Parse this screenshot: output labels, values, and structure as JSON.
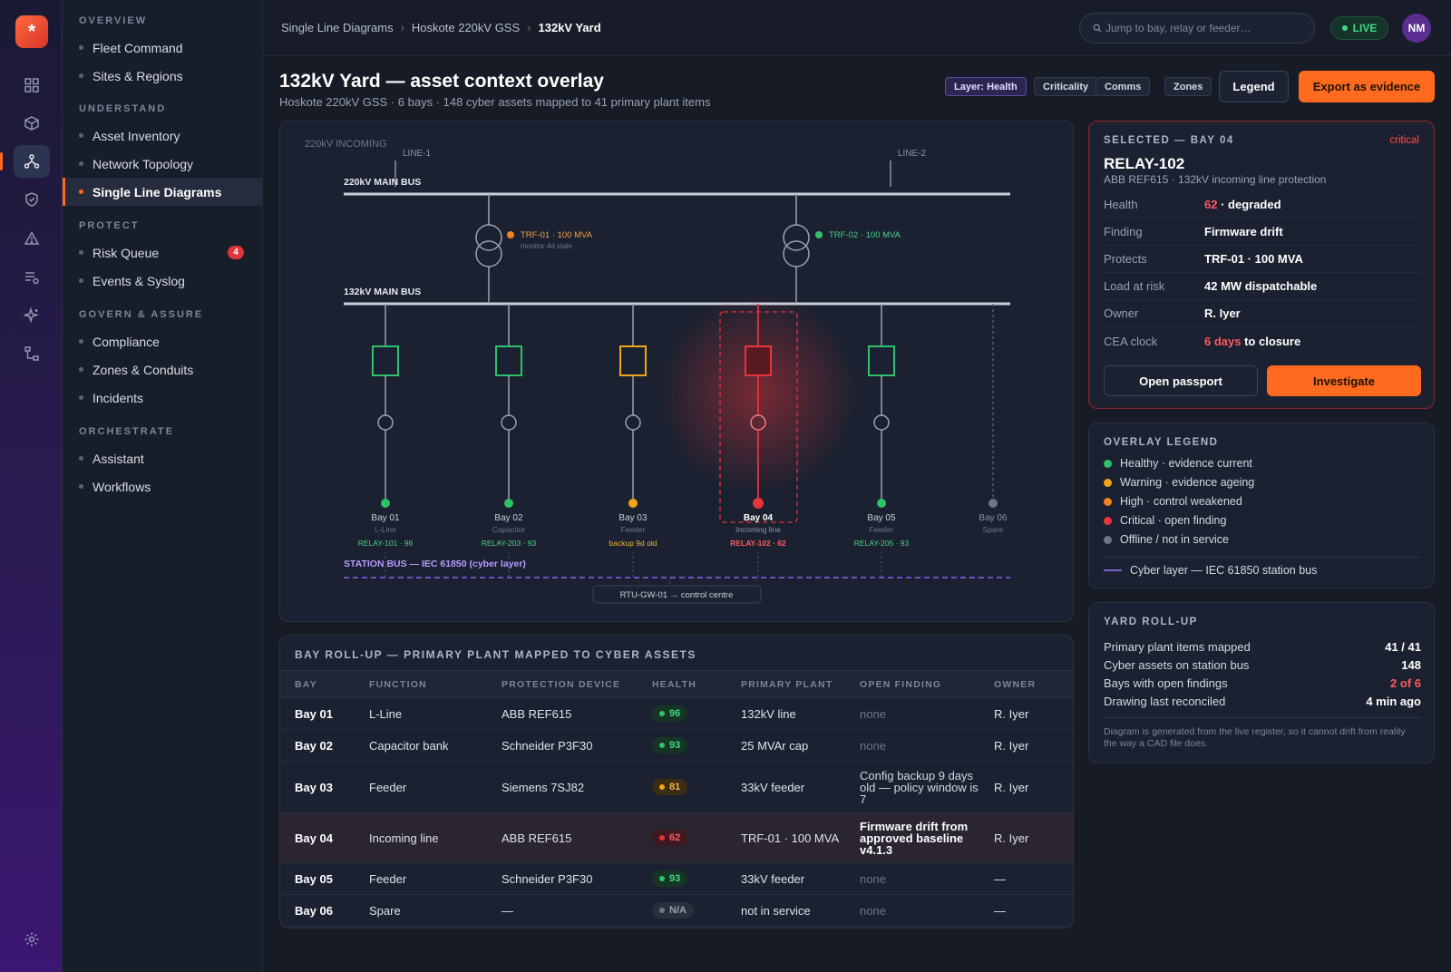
{
  "rail": {
    "logo_glyph": "*",
    "icons": [
      "grid-icon",
      "cube-icon",
      "topology-icon",
      "shield-icon",
      "warning-icon",
      "list-icon",
      "sparkle-icon",
      "workflow-icon"
    ],
    "settings_icon": "gear-icon"
  },
  "sidebar": {
    "sections": [
      {
        "title": "OVERVIEW",
        "items": [
          {
            "label": "Fleet Command"
          },
          {
            "label": "Sites & Regions"
          }
        ]
      },
      {
        "title": "UNDERSTAND",
        "items": [
          {
            "label": "Asset Inventory"
          },
          {
            "label": "Network Topology"
          },
          {
            "label": "Single Line Diagrams",
            "active": true
          }
        ]
      },
      {
        "title": "PROTECT",
        "items": [
          {
            "label": "Risk Queue",
            "badge": "4"
          },
          {
            "label": "Events & Syslog"
          }
        ]
      },
      {
        "title": "GOVERN & ASSURE",
        "items": [
          {
            "label": "Compliance"
          },
          {
            "label": "Zones & Conduits"
          },
          {
            "label": "Incidents"
          }
        ]
      },
      {
        "title": "ORCHESTRATE",
        "items": [
          {
            "label": "Assistant"
          },
          {
            "label": "Workflows"
          }
        ]
      }
    ]
  },
  "topbar": {
    "breadcrumb": [
      "Single Line Diagrams",
      "Hoskote 220kV GSS",
      "132kV Yard"
    ],
    "search_placeholder": "Jump to bay, relay or feeder…",
    "live_label": "LIVE",
    "avatar_initials": "NM"
  },
  "header": {
    "title": "132kV Yard — asset context overlay",
    "subtitle": "Hoskote 220kV GSS · 6 bays · 148 cyber assets mapped to 41 primary plant items",
    "chips": [
      "Layer: Health",
      "Criticality",
      "Comms",
      "Zones"
    ],
    "legend_button": "Legend",
    "export_button": "Export as evidence"
  },
  "diagram": {
    "incoming_label": "220kV INCOMING",
    "line1": "LINE-1",
    "line2": "LINE-2",
    "bus220": "220kV MAIN BUS",
    "bus132": "132kV MAIN BUS",
    "transformers": [
      {
        "label": "TRF-01 · 100 MVA",
        "note": "monitor 4d stale",
        "status": "high"
      },
      {
        "label": "TRF-02 · 100 MVA",
        "note": "",
        "status": "healthy"
      }
    ],
    "bays": [
      {
        "name": "Bay 01",
        "func": "L-Line",
        "relay": "RELAY-101 · 96",
        "status": "healthy"
      },
      {
        "name": "Bay 02",
        "func": "Capacitor",
        "relay": "RELAY-203 · 93",
        "status": "healthy"
      },
      {
        "name": "Bay 03",
        "func": "Feeder",
        "relay": "backup 9d old",
        "status": "warning"
      },
      {
        "name": "Bay 04",
        "func": "Incoming line",
        "relay": "RELAY-102 · 62",
        "status": "critical"
      },
      {
        "name": "Bay 05",
        "func": "Feeder",
        "relay": "RELAY-205 · 93",
        "status": "healthy"
      },
      {
        "name": "Bay 06",
        "func": "Spare",
        "relay": "",
        "status": "offline"
      }
    ],
    "station_bus": "STATION BUS — IEC 61850 (cyber layer)",
    "rtu": "RTU-GW-01 → control centre"
  },
  "table": {
    "title": "BAY ROLL-UP — PRIMARY PLANT MAPPED TO CYBER ASSETS",
    "columns": [
      "BAY",
      "FUNCTION",
      "PROTECTION DEVICE",
      "HEALTH",
      "PRIMARY PLANT",
      "OPEN FINDING",
      "OWNER"
    ],
    "rows": [
      {
        "bay": "Bay 01",
        "function": "L-Line",
        "device": "ABB REF615",
        "health": "96",
        "status": "healthy",
        "plant": "132kV line",
        "finding": "none",
        "owner": "R. Iyer"
      },
      {
        "bay": "Bay 02",
        "function": "Capacitor bank",
        "device": "Schneider P3F30",
        "health": "93",
        "status": "healthy",
        "plant": "25 MVAr cap",
        "finding": "none",
        "owner": "R. Iyer"
      },
      {
        "bay": "Bay 03",
        "function": "Feeder",
        "device": "Siemens 7SJ82",
        "health": "81",
        "status": "warning",
        "plant": "33kV feeder",
        "finding": "Config backup 9 days old — policy window is 7",
        "owner": "R. Iyer"
      },
      {
        "bay": "Bay 04",
        "function": "Incoming line",
        "device": "ABB REF615",
        "health": "62",
        "status": "critical",
        "plant": "TRF-01 · 100 MVA",
        "finding": "Firmware drift from approved baseline v4.1.3",
        "owner": "R. Iyer"
      },
      {
        "bay": "Bay 05",
        "function": "Feeder",
        "device": "Schneider P3F30",
        "health": "93",
        "status": "healthy",
        "plant": "33kV feeder",
        "finding": "none",
        "owner": "—"
      },
      {
        "bay": "Bay 06",
        "function": "Spare",
        "device": "—",
        "health": "N/A",
        "status": "offline",
        "plant": "not in service",
        "finding": "none",
        "owner": "—"
      }
    ]
  },
  "selected": {
    "caption": "SELECTED — BAY 04",
    "criticality": "critical",
    "name": "RELAY-102",
    "subtitle": "ABB REF615 · 132kV incoming line protection",
    "fields": [
      {
        "k": "Health",
        "v_red": "62",
        "v": " · degraded"
      },
      {
        "k": "Finding",
        "v_red": "",
        "v": "Firmware drift"
      },
      {
        "k": "Protects",
        "v_red": "",
        "v": "TRF-01 · 100 MVA"
      },
      {
        "k": "Load at risk",
        "v_red": "",
        "v": "42 MW dispatchable"
      },
      {
        "k": "Owner",
        "v_red": "",
        "v": "R. Iyer"
      },
      {
        "k": "CEA clock",
        "v_red": "6 days",
        "v": " to closure"
      }
    ],
    "open_button": "Open passport",
    "investigate_button": "Investigate"
  },
  "legend": {
    "caption": "OVERLAY LEGEND",
    "items": [
      {
        "label": "Healthy · evidence current",
        "color": "#2ec26a"
      },
      {
        "label": "Warning · evidence ageing",
        "color": "#f2a516"
      },
      {
        "label": "High · control weakened",
        "color": "#f2801f"
      },
      {
        "label": "Critical · open finding",
        "color": "#e8343b"
      },
      {
        "label": "Offline / not in service",
        "color": "#6f7587"
      }
    ],
    "cyber_label": "Cyber layer — IEC 61850 station bus"
  },
  "rollup": {
    "caption": "YARD ROLL-UP",
    "rows": [
      {
        "k": "Primary plant items mapped",
        "v": "41 / 41",
        "red": false
      },
      {
        "k": "Cyber assets on station bus",
        "v": "148",
        "red": false
      },
      {
        "k": "Bays with open findings",
        "v": "2 of 6",
        "red": true
      },
      {
        "k": "Drawing last reconciled",
        "v": "4 min ago",
        "red": false
      }
    ],
    "note": "Diagram is generated from the live register, so it cannot drift from reality the way a CAD file does."
  },
  "colors": {
    "accent": "#ff6a1f",
    "healthy": "#2ec26a",
    "warning": "#f2a516",
    "high": "#f2801f",
    "critical": "#e8343b",
    "offline": "#6f7587",
    "cyber": "#7a5fd0"
  }
}
